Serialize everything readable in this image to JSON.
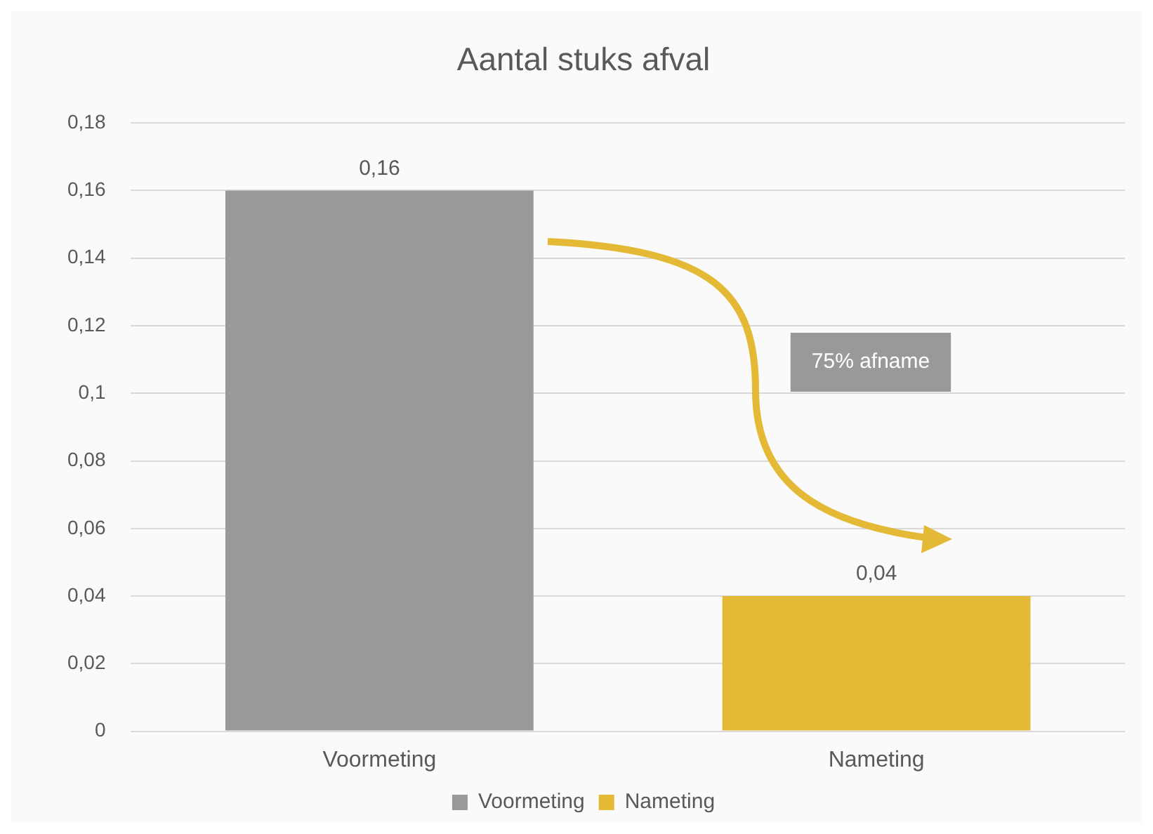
{
  "chart_data": {
    "type": "bar",
    "title": "Aantal stuks afval",
    "categories": [
      "Voormeting",
      "Nameting"
    ],
    "series": [
      {
        "name": "Voormeting",
        "color": "#999999",
        "values": [
          0.16,
          null
        ],
        "value_labels": [
          "0,16",
          null
        ]
      },
      {
        "name": "Nameting",
        "color": "#e3b935",
        "values": [
          null,
          0.04
        ],
        "value_labels": [
          null,
          "0,04"
        ]
      }
    ],
    "ylim": [
      0,
      0.18
    ],
    "yticks": [
      0,
      {
        "value": 0.02,
        "label": "0,02"
      },
      {
        "value": 0.04,
        "label": "0,04"
      },
      {
        "value": 0.06,
        "label": "0,06"
      },
      {
        "value": 0.08,
        "label": "0,08"
      },
      {
        "value": 0.1,
        "label": "0,1"
      },
      {
        "value": 0.12,
        "label": "0,12"
      },
      {
        "value": 0.14,
        "label": "0,14"
      },
      {
        "value": 0.16,
        "label": "0,16"
      },
      {
        "value": 0.18,
        "label": "0,18"
      }
    ],
    "grid": "y",
    "legend": "bottom",
    "annotations": [
      "75% afname"
    ]
  }
}
